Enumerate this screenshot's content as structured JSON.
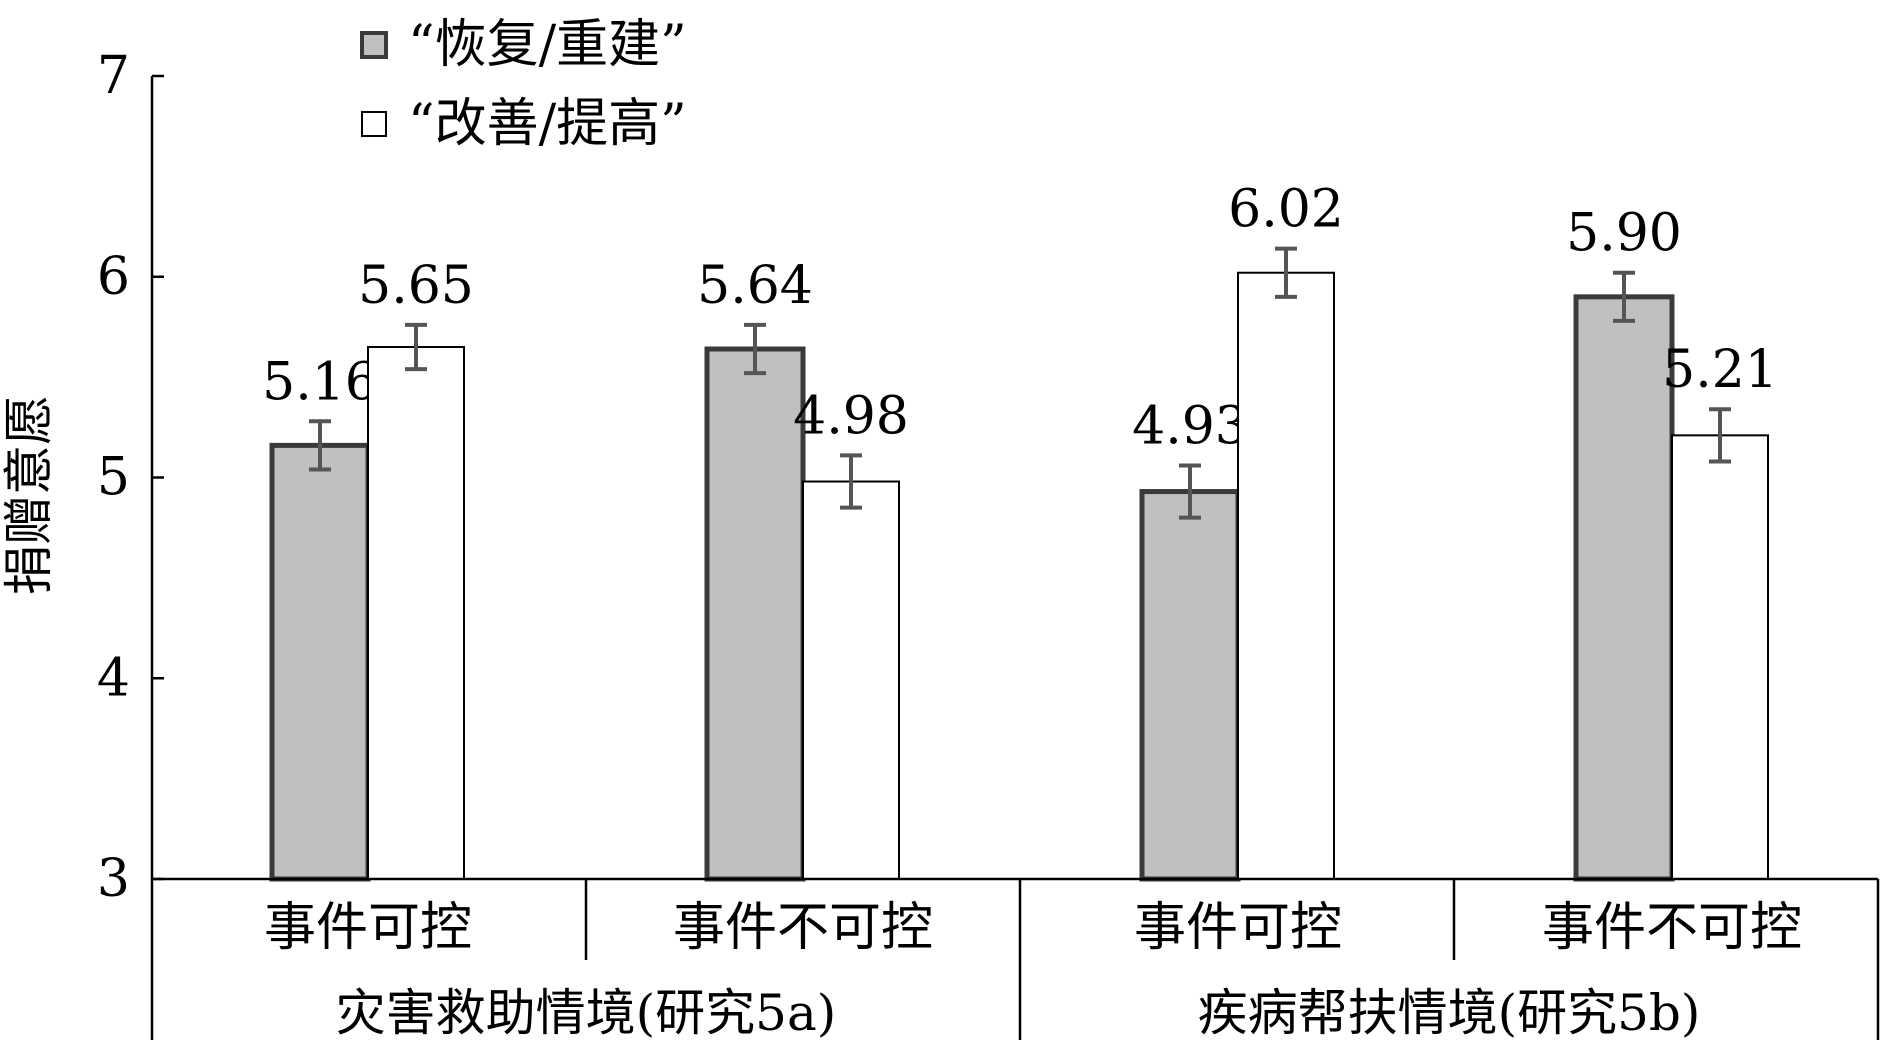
{
  "chart_data": {
    "type": "bar",
    "ylabel": "捐赠意愿",
    "ylim": [
      3,
      7
    ],
    "yticks": [
      3,
      4,
      5,
      6,
      7
    ],
    "groups": [
      {
        "label": "灾害救助情境(研究5a)",
        "categories": [
          "事件可控",
          "事件不可控"
        ]
      },
      {
        "label": "疾病帮扶情境(研究5b)",
        "categories": [
          "事件可控",
          "事件不可控"
        ]
      }
    ],
    "categories": [
      "事件可控",
      "事件不可控",
      "事件可控",
      "事件不可控"
    ],
    "series": [
      {
        "name": "“恢复/重建”",
        "color": "#c0c0c0",
        "values": [
          5.16,
          5.64,
          4.93,
          5.9
        ],
        "labels": [
          "5.16",
          "5.64",
          "4.93",
          "5.90"
        ],
        "errors": [
          0.12,
          0.12,
          0.13,
          0.12
        ]
      },
      {
        "name": "“改善/提高”",
        "color": "#ffffff",
        "values": [
          5.65,
          4.98,
          6.02,
          5.21
        ],
        "labels": [
          "5.65",
          "4.98",
          "6.02",
          "5.21"
        ],
        "errors": [
          0.11,
          0.13,
          0.12,
          0.13
        ]
      }
    ],
    "legend": "top-left",
    "grid": false
  }
}
